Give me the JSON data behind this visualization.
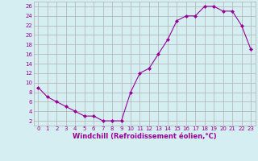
{
  "x": [
    0,
    1,
    2,
    3,
    4,
    5,
    6,
    7,
    8,
    9,
    10,
    11,
    12,
    13,
    14,
    15,
    16,
    17,
    18,
    19,
    20,
    21,
    22,
    23
  ],
  "y_values": [
    9,
    7,
    6,
    5,
    4,
    3,
    3,
    2,
    2,
    2,
    8,
    12,
    13,
    16,
    19,
    23,
    24,
    24,
    26,
    26,
    25,
    25,
    22,
    17
  ],
  "line_color": "#990099",
  "marker": "D",
  "marker_size": 2.0,
  "bg_color": "#d4eef2",
  "grid_color": "#b0b0b0",
  "xlabel": "Windchill (Refroidissement éolien,°C)",
  "xlabel_color": "#990099",
  "ylabel_ticks": [
    2,
    4,
    6,
    8,
    10,
    12,
    14,
    16,
    18,
    20,
    22,
    24,
    26
  ],
  "ylim": [
    1,
    27
  ],
  "xlim": [
    -0.5,
    23.5
  ],
  "xticks": [
    0,
    1,
    2,
    3,
    4,
    5,
    6,
    7,
    8,
    9,
    10,
    11,
    12,
    13,
    14,
    15,
    16,
    17,
    18,
    19,
    20,
    21,
    22,
    23
  ],
  "tick_color": "#990099",
  "tick_fontsize": 5.0,
  "xlabel_fontsize": 6.0,
  "linewidth": 0.8
}
